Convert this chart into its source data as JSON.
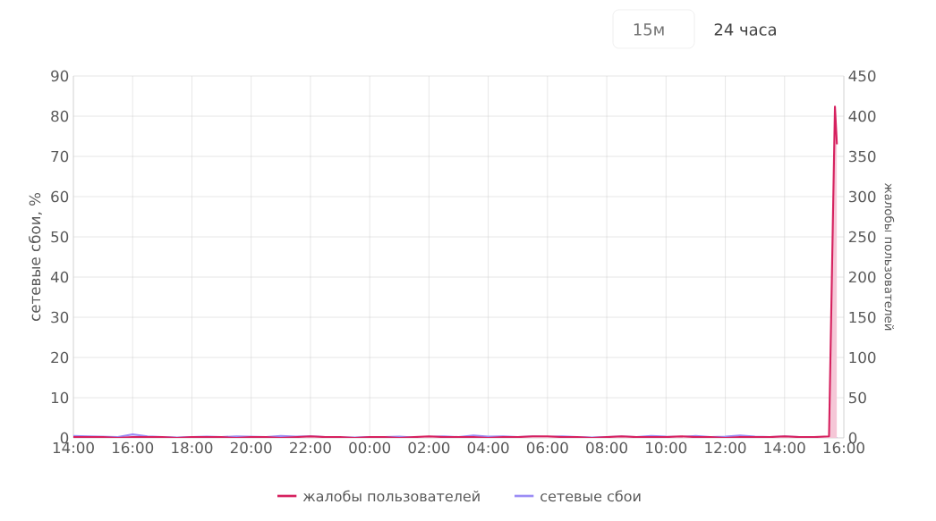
{
  "chart_data": {
    "type": "area",
    "xlabel": null,
    "ylabel": "сетевые сбои, %",
    "y2label": "жалобы пользователей",
    "x": [
      "--01-01T14:00",
      "--01-01T14:30",
      "--01-01T15:00",
      "--01-01T15:30",
      "--01-01T16:00",
      "--01-01T16:30",
      "--01-01T17:00",
      "--01-01T17:30",
      "--01-01T18:00",
      "--01-01T18:30",
      "--01-01T19:00",
      "--01-01T19:30",
      "--01-01T20:00",
      "--01-01T20:30",
      "--01-01T21:00",
      "--01-01T21:30",
      "--01-01T22:00",
      "--01-01T22:30",
      "--01-01T23:00",
      "--01-01T23:30",
      "--01-02T00:00",
      "--01-02T00:30",
      "--01-02T01:00",
      "--01-02T01:30",
      "--01-02T02:00",
      "--01-02T02:30",
      "--01-02T03:00",
      "--01-02T03:30",
      "--01-02T04:00",
      "--01-02T04:30",
      "--01-02T05:00",
      "--01-02T05:30",
      "--01-02T06:00",
      "--01-02T06:30",
      "--01-02T07:00",
      "--01-02T07:30",
      "--01-02T08:00",
      "--01-02T08:30",
      "--01-02T09:00",
      "--01-02T09:30",
      "--01-02T10:00",
      "--01-02T10:30",
      "--01-02T11:00",
      "--01-02T11:30",
      "--01-02T12:00",
      "--01-02T12:30",
      "--01-02T13:00",
      "--01-02T13:30",
      "--01-02T14:00",
      "--01-02T14:30",
      "--01-02T15:00",
      "--01-02T15:30",
      "--01-02T15:42",
      "--01-02T15:46"
    ],
    "series": [
      {
        "name": "жалобы пользователей",
        "color": "#d6215f",
        "axis": "y2",
        "values": [
          1,
          1,
          1,
          0,
          1,
          1,
          1,
          0,
          1,
          1,
          1,
          0,
          1,
          1,
          0,
          1,
          2,
          1,
          1,
          0,
          1,
          1,
          0,
          1,
          2,
          1,
          1,
          1,
          0,
          1,
          1,
          2,
          2,
          1,
          1,
          0,
          1,
          2,
          1,
          1,
          1,
          2,
          1,
          1,
          0,
          1,
          1,
          1,
          2,
          1,
          1,
          2,
          412,
          365
        ]
      },
      {
        "name": "сетевые сбои",
        "color": "#9b8cf5",
        "values": [
          0.5,
          0.4,
          0.3,
          0.2,
          0.9,
          0.4,
          0.2,
          0.1,
          0.2,
          0.3,
          0.2,
          0.4,
          0.3,
          0.2,
          0.5,
          0.3,
          0.4,
          0.2,
          0.1,
          0.1,
          0.2,
          0.2,
          0.3,
          0.1,
          0.2,
          0.4,
          0.2,
          0.6,
          0.3,
          0.4,
          0.2,
          0.3,
          0.2,
          0.4,
          0.2,
          0.1,
          0.2,
          0.3,
          0.2,
          0.5,
          0.3,
          0.2,
          0.5,
          0.2,
          0.3,
          0.6,
          0.3,
          0.2,
          0.3,
          0.2,
          0.1,
          0.2,
          0.1,
          0
        ]
      }
    ],
    "xlim": [
      "--01-01T14:00",
      "--01-02T16:00"
    ],
    "xticks": [
      {
        "value": "--01-01T14:00",
        "label": "14:00"
      },
      {
        "value": "--01-01T16:00",
        "label": "16:00"
      },
      {
        "value": "--01-01T18:00",
        "label": "18:00"
      },
      {
        "value": "--01-01T20:00",
        "label": "20:00"
      },
      {
        "value": "--01-01T22:00",
        "label": "22:00"
      },
      {
        "value": "--01-02T00:00",
        "label": "00:00"
      },
      {
        "value": "--01-02T02:00",
        "label": "02:00"
      },
      {
        "value": "--01-02T04:00",
        "label": "04:00"
      },
      {
        "value": "--01-02T06:00",
        "label": "06:00"
      },
      {
        "value": "--01-02T08:00",
        "label": "08:00"
      },
      {
        "value": "--01-02T10:00",
        "label": "10:00"
      },
      {
        "value": "--01-02T12:00",
        "label": "12:00"
      },
      {
        "value": "--01-02T14:00",
        "label": "14:00"
      },
      {
        "value": "--01-02T16:00",
        "label": "16:00"
      }
    ],
    "ylim": [
      0,
      90
    ],
    "yticks": [
      0,
      10,
      20,
      30,
      40,
      50,
      60,
      70,
      80,
      90
    ],
    "y2lim": [
      0,
      450
    ],
    "y2ticks": [
      0,
      50,
      100,
      150,
      200,
      250,
      300,
      350,
      400,
      450
    ],
    "grid": true,
    "legend": "bottom",
    "marker": "none",
    "line_style": "solid",
    "annotations": [
      "15м",
      "24 часа"
    ]
  }
}
